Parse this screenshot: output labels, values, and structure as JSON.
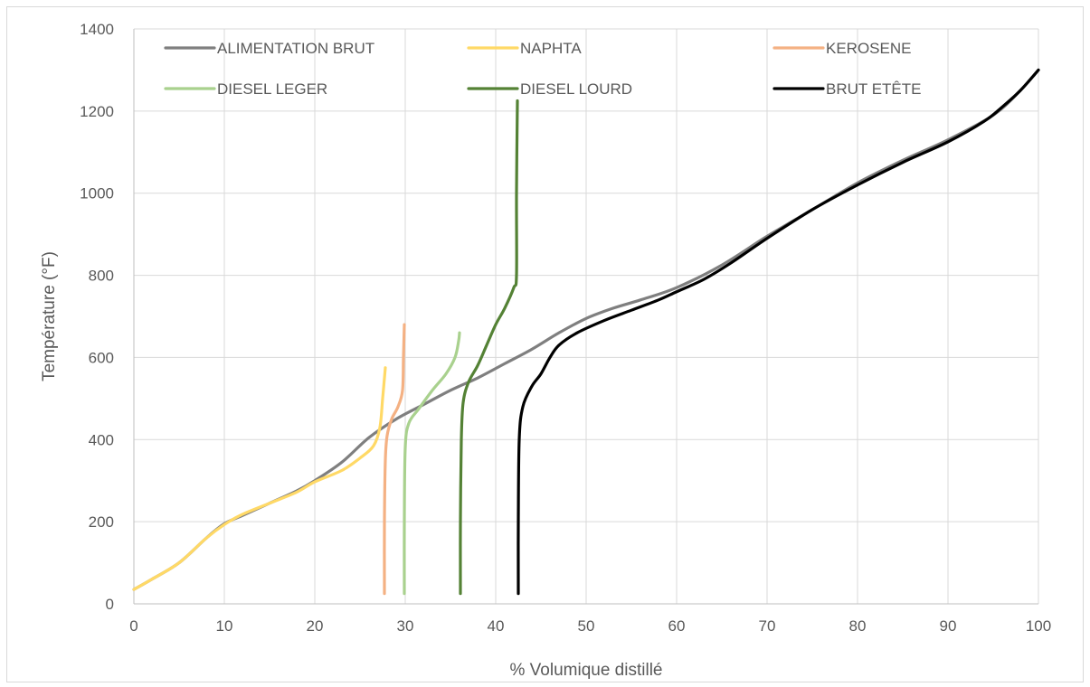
{
  "chart_data": {
    "type": "line",
    "title": "",
    "xlabel": "% Volumique distillé",
    "ylabel": "Température (°F)",
    "xlim": [
      0,
      100
    ],
    "ylim": [
      0,
      1400
    ],
    "xticks": [
      0,
      10,
      20,
      30,
      40,
      50,
      60,
      70,
      80,
      90,
      100
    ],
    "yticks": [
      0,
      200,
      400,
      600,
      800,
      1000,
      1200,
      1400
    ],
    "grid": true,
    "legend_position": "top-inside",
    "series": [
      {
        "name": "ALIMENTATION BRUT",
        "color": "#7f7f7f",
        "points": [
          [
            0,
            35
          ],
          [
            2,
            60
          ],
          [
            5,
            100
          ],
          [
            8,
            160
          ],
          [
            10,
            195
          ],
          [
            12,
            215
          ],
          [
            15,
            245
          ],
          [
            18,
            275
          ],
          [
            20,
            300
          ],
          [
            23,
            345
          ],
          [
            26,
            405
          ],
          [
            29,
            450
          ],
          [
            32,
            485
          ],
          [
            35,
            520
          ],
          [
            38,
            550
          ],
          [
            41,
            585
          ],
          [
            44,
            620
          ],
          [
            47,
            660
          ],
          [
            50,
            695
          ],
          [
            53,
            720
          ],
          [
            56,
            740
          ],
          [
            60,
            770
          ],
          [
            65,
            825
          ],
          [
            70,
            895
          ],
          [
            75,
            960
          ],
          [
            80,
            1025
          ],
          [
            85,
            1080
          ],
          [
            90,
            1130
          ],
          [
            95,
            1190
          ],
          [
            98,
            1250
          ],
          [
            100,
            1300
          ]
        ]
      },
      {
        "name": "NAPHTA",
        "color": "#ffd966",
        "points": [
          [
            0,
            35
          ],
          [
            2,
            60
          ],
          [
            5,
            100
          ],
          [
            8,
            160
          ],
          [
            10,
            193
          ],
          [
            12,
            218
          ],
          [
            15,
            245
          ],
          [
            18,
            272
          ],
          [
            20,
            297
          ],
          [
            23,
            325
          ],
          [
            25,
            355
          ],
          [
            26.5,
            385
          ],
          [
            27.2,
            430
          ],
          [
            27.5,
            500
          ],
          [
            27.8,
            575
          ]
        ]
      },
      {
        "name": "KEROSENE",
        "color": "#f4b183",
        "points": [
          [
            27.7,
            25
          ],
          [
            27.7,
            200
          ],
          [
            27.8,
            350
          ],
          [
            28.0,
            410
          ],
          [
            28.5,
            450
          ],
          [
            29.2,
            480
          ],
          [
            29.7,
            520
          ],
          [
            29.8,
            600
          ],
          [
            29.9,
            680
          ]
        ]
      },
      {
        "name": "DIESEL LEGER",
        "color": "#a9d18e",
        "points": [
          [
            29.9,
            25
          ],
          [
            29.9,
            200
          ],
          [
            30.0,
            380
          ],
          [
            30.4,
            440
          ],
          [
            31.5,
            475
          ],
          [
            33,
            520
          ],
          [
            34.5,
            560
          ],
          [
            35.5,
            600
          ],
          [
            35.9,
            640
          ],
          [
            36.0,
            660
          ]
        ]
      },
      {
        "name": "DIESEL LOURD",
        "color": "#548235",
        "points": [
          [
            36.1,
            25
          ],
          [
            36.1,
            200
          ],
          [
            36.2,
            400
          ],
          [
            36.4,
            490
          ],
          [
            37,
            540
          ],
          [
            38,
            580
          ],
          [
            39,
            630
          ],
          [
            40,
            680
          ],
          [
            41,
            720
          ],
          [
            42,
            770
          ],
          [
            42.3,
            800
          ],
          [
            42.3,
            1000
          ],
          [
            42.4,
            1225
          ]
        ]
      },
      {
        "name": "BRUT ETÊTE",
        "color": "#000000",
        "points": [
          [
            42.5,
            25
          ],
          [
            42.5,
            200
          ],
          [
            42.6,
            400
          ],
          [
            43,
            480
          ],
          [
            44,
            530
          ],
          [
            45,
            560
          ],
          [
            46,
            600
          ],
          [
            47,
            630
          ],
          [
            49,
            660
          ],
          [
            52,
            690
          ],
          [
            55,
            715
          ],
          [
            58,
            740
          ],
          [
            60,
            760
          ],
          [
            63,
            790
          ],
          [
            66,
            830
          ],
          [
            70,
            890
          ],
          [
            75,
            960
          ],
          [
            80,
            1020
          ],
          [
            85,
            1075
          ],
          [
            90,
            1125
          ],
          [
            94,
            1175
          ],
          [
            96,
            1210
          ],
          [
            98,
            1250
          ],
          [
            100,
            1300
          ]
        ]
      }
    ]
  }
}
